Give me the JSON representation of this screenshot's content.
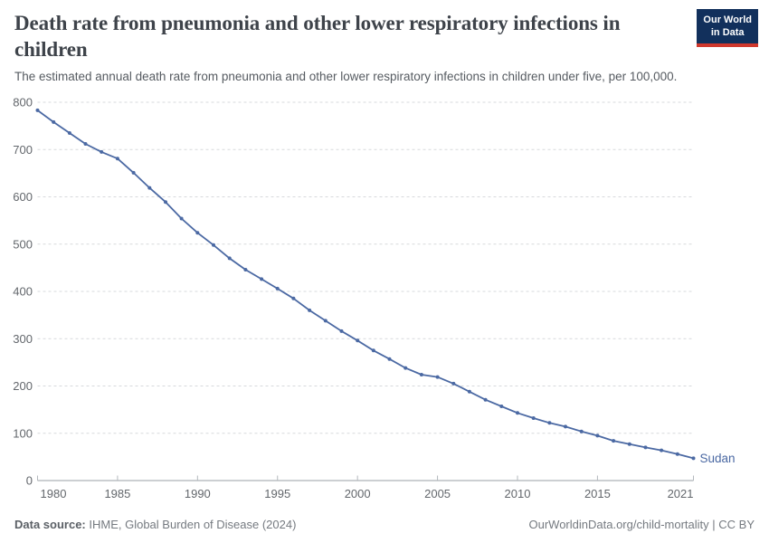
{
  "header": {
    "title": "Death rate from pneumonia and other lower respiratory infections in children",
    "subtitle": "The estimated annual death rate from pneumonia and other lower respiratory infections in children under five, per 100,000.",
    "logo": {
      "line1": "Our World",
      "line2": "in Data",
      "bg_color": "#12305c",
      "accent_color": "#d0382d"
    }
  },
  "footer": {
    "source_label": "Data source:",
    "source_value": "IHME, Global Burden of Disease (2024)",
    "license": "OurWorldinData.org/child-mortality | CC BY"
  },
  "chart_data": {
    "type": "line",
    "title": "Death rate from pneumonia and other lower respiratory infections in children",
    "entity_label": "Sudan",
    "line_color": "#4b69a3",
    "grid": "horizontal-dashed",
    "legend_position": "end-of-line-label",
    "ylim": [
      0,
      800
    ],
    "y_ticks": [
      0,
      100,
      200,
      300,
      400,
      500,
      600,
      700,
      800
    ],
    "x_ticks": [
      1980,
      1985,
      1990,
      1995,
      2000,
      2005,
      2010,
      2015,
      2021
    ],
    "years": [
      1980,
      1981,
      1982,
      1983,
      1984,
      1985,
      1986,
      1987,
      1988,
      1989,
      1990,
      1991,
      1992,
      1993,
      1994,
      1995,
      1996,
      1997,
      1998,
      1999,
      2000,
      2001,
      2002,
      2003,
      2004,
      2005,
      2006,
      2007,
      2008,
      2009,
      2010,
      2011,
      2012,
      2013,
      2014,
      2015,
      2016,
      2017,
      2018,
      2019,
      2020,
      2021
    ],
    "series": [
      {
        "name": "Sudan",
        "values": [
          783,
          758,
          735,
          712,
          695,
          681,
          651,
          619,
          589,
          554,
          524,
          498,
          470,
          446,
          426,
          406,
          385,
          360,
          338,
          316,
          296,
          275,
          257,
          238,
          224,
          219,
          205,
          188,
          171,
          157,
          143,
          132,
          122,
          114,
          104,
          95,
          84,
          77,
          70,
          64,
          56,
          47
        ]
      }
    ]
  }
}
